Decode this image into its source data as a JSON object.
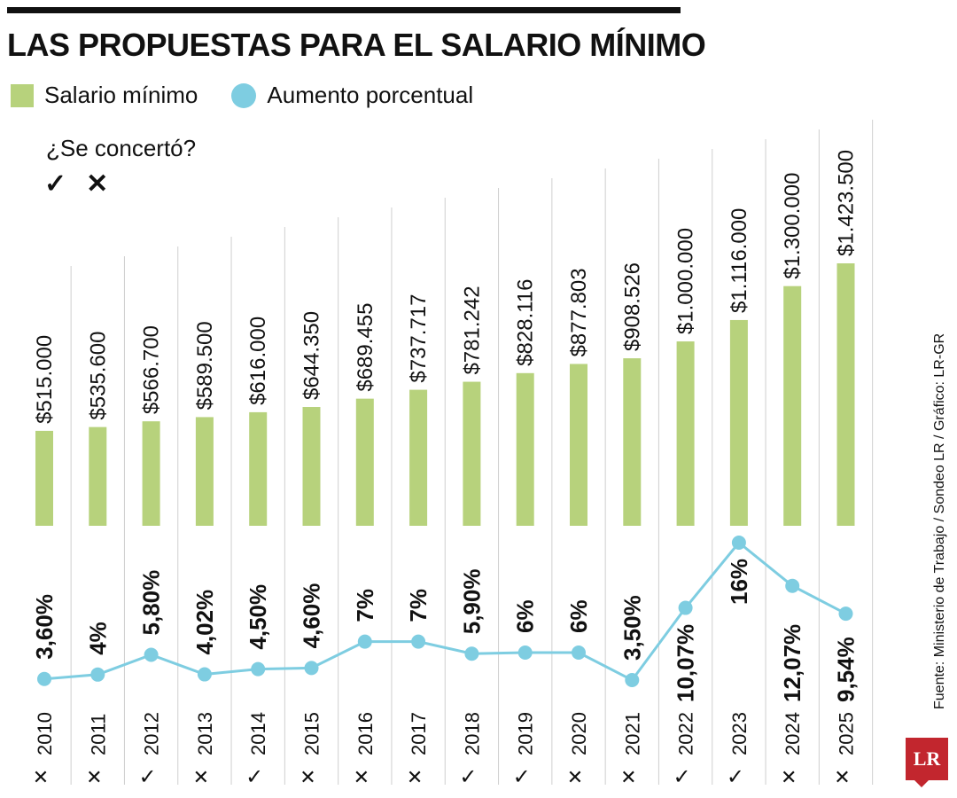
{
  "title": "LAS PROPUESTAS PARA EL SALARIO MÍNIMO",
  "legend": {
    "bar_label": "Salario mínimo",
    "dot_label": "Aumento porcentual"
  },
  "concert": {
    "label": "¿Se concertó?",
    "yes_symbol": "✓",
    "no_symbol": "✕"
  },
  "source": "Fuente: Ministerio de Trabajo / Sondeo LR / Gráfico: LR-GR",
  "logo_text": "LR",
  "colors": {
    "bar": "#b7d27c",
    "line": "#7ecde1",
    "grid": "#cfcfcf",
    "text": "#111111"
  },
  "chart_data": {
    "type": "bar",
    "title": "LAS PROPUESTAS PARA EL SALARIO MÍNIMO",
    "categories": [
      "2010",
      "2011",
      "2012",
      "2013",
      "2014",
      "2015",
      "2016",
      "2017",
      "2018",
      "2019",
      "2020",
      "2021",
      "2022",
      "2023",
      "2024",
      "2025"
    ],
    "series": [
      {
        "name": "Salario mínimo",
        "values": [
          515000,
          535600,
          566700,
          589500,
          616000,
          644350,
          689455,
          737717,
          781242,
          828116,
          877803,
          908526,
          1000000,
          1116000,
          1300000,
          1423500
        ],
        "labels": [
          "$515.000",
          "$535.600",
          "$566.700",
          "$589.500",
          "$616.000",
          "$644.350",
          "$689.455",
          "$737.717",
          "$781.242",
          "$828.116",
          "$877.803",
          "$908.526",
          "$1.000.000",
          "$1.116.000",
          "$1.300.000",
          "$1.423.500"
        ]
      },
      {
        "name": "Aumento porcentual",
        "values": [
          3.6,
          4,
          5.8,
          4.02,
          4.5,
          4.6,
          7,
          7,
          5.9,
          6,
          6,
          3.5,
          10.07,
          16,
          12.07,
          9.54
        ],
        "labels": [
          "3,60%",
          "4%",
          "5,80%",
          "4,02%",
          "4,50%",
          "4,60%",
          "7%",
          "7%",
          "5,90%",
          "6%",
          "6%",
          "3,50%",
          "10,07%",
          "16%",
          "12,07%",
          "9,54%"
        ]
      }
    ],
    "concerted": [
      false,
      false,
      true,
      false,
      true,
      false,
      false,
      false,
      true,
      true,
      false,
      false,
      true,
      true,
      false,
      false
    ]
  }
}
